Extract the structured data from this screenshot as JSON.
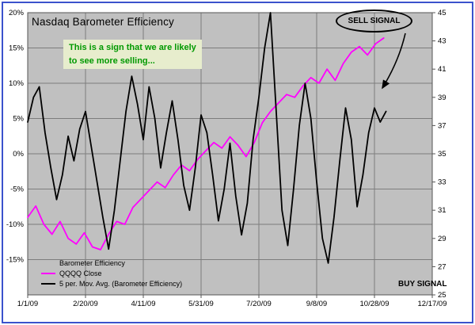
{
  "colors": {
    "frame_border": "#3b52cc",
    "plot_background": "#c0c0c0",
    "gridline": "#7d7d7d",
    "axis": "#555555"
  },
  "annotations": {
    "note_line1": "This is a sign that we are likely",
    "note_line2": "to see more selling...",
    "note_color": "#009900",
    "note_bg": "#e7edcd",
    "sell_signal": "SELL SIGNAL",
    "buy_signal": "BUY SIGNAL"
  },
  "chart_data": {
    "type": "line",
    "title": "Nasdaq Barometer Efficiency",
    "plot_bg": "#c0c0c0",
    "grid_color": "#7d7d7d",
    "x_axis": {
      "unit": "date",
      "range_days": [
        0,
        350
      ],
      "tick_days": [
        0,
        50,
        100,
        150,
        200,
        250,
        300,
        350
      ],
      "tick_labels": [
        "1/1/09",
        "2/20/09",
        "4/11/09",
        "5/31/09",
        "7/20/09",
        "9/8/09",
        "10/28/09",
        "12/17/09"
      ]
    },
    "y_left": {
      "range": [
        -20,
        20
      ],
      "tick_values": [
        20,
        15,
        10,
        5,
        0,
        -5,
        -10,
        -15,
        -20
      ],
      "tick_labels": [
        "20%",
        "15%",
        "10%",
        "5%",
        "0%",
        "-5%",
        "-10%",
        "-15%",
        ""
      ]
    },
    "y_right": {
      "range": [
        25,
        45
      ],
      "tick_values": [
        45,
        43,
        41,
        39,
        37,
        35,
        33,
        31,
        29,
        27,
        25
      ],
      "tick_labels": [
        "45",
        "43",
        "41",
        "39",
        "37",
        "35",
        "33",
        "31",
        "29",
        "27",
        "25"
      ]
    },
    "series": [
      {
        "name": "QQQQ Close",
        "axis": "right",
        "color": "#ff00ff",
        "width": 1.8,
        "x_days": [
          0,
          7,
          14,
          21,
          28,
          35,
          42,
          49,
          56,
          63,
          70,
          77,
          84,
          91,
          98,
          105,
          112,
          119,
          126,
          133,
          140,
          147,
          154,
          161,
          168,
          175,
          182,
          189,
          196,
          203,
          210,
          217,
          224,
          231,
          238,
          245,
          252,
          259,
          266,
          273,
          280,
          287,
          294,
          301,
          308
        ],
        "values": [
          30.5,
          31.3,
          30.0,
          29.3,
          30.2,
          29.0,
          28.6,
          29.4,
          28.4,
          28.2,
          29.3,
          30.2,
          30.0,
          31.2,
          31.8,
          32.4,
          33.0,
          32.6,
          33.5,
          34.2,
          33.8,
          34.6,
          35.2,
          35.8,
          35.4,
          36.2,
          35.6,
          34.8,
          35.8,
          37.2,
          38.0,
          38.6,
          39.2,
          39.0,
          39.8,
          40.4,
          40.0,
          41.0,
          40.2,
          41.4,
          42.2,
          42.6,
          42.0,
          42.8,
          43.2
        ]
      },
      {
        "name": "5 per. Mov. Avg. (Barometer Efficiency)",
        "axis": "left",
        "color": "#000000",
        "width": 1.8,
        "x_days": [
          0,
          5,
          10,
          15,
          20,
          25,
          30,
          35,
          40,
          45,
          50,
          55,
          60,
          65,
          70,
          75,
          80,
          85,
          90,
          95,
          100,
          105,
          110,
          115,
          120,
          125,
          130,
          135,
          140,
          145,
          150,
          155,
          160,
          165,
          170,
          175,
          180,
          185,
          190,
          195,
          200,
          205,
          210,
          215,
          220,
          225,
          230,
          235,
          240,
          245,
          250,
          255,
          260,
          265,
          270,
          275,
          280,
          285,
          290,
          295,
          300,
          305,
          310
        ],
        "values": [
          4.5,
          8.0,
          9.5,
          3.0,
          -2.0,
          -6.5,
          -3.0,
          2.5,
          -1.0,
          3.5,
          6.0,
          1.0,
          -4.0,
          -9.0,
          -13.5,
          -8.0,
          -1.0,
          6.0,
          11.0,
          7.0,
          2.0,
          9.5,
          5.0,
          -2.0,
          3.0,
          7.5,
          2.0,
          -4.5,
          -8.0,
          -2.0,
          5.5,
          3.0,
          -3.0,
          -9.5,
          -5.0,
          1.5,
          -6.0,
          -11.5,
          -7.0,
          2.0,
          8.0,
          15.0,
          20.0,
          6.0,
          -8.0,
          -13.0,
          -5.0,
          4.0,
          10.0,
          5.0,
          -4.0,
          -12.0,
          -15.5,
          -9.0,
          -1.0,
          6.5,
          2.0,
          -7.5,
          -3.0,
          3.0,
          6.5,
          4.5,
          6.0
        ]
      }
    ],
    "legend": {
      "position": "bottom-left-inside",
      "entries": [
        {
          "label": "Barometer Efficiency",
          "sample": "none"
        },
        {
          "label": "QQQQ Close",
          "sample": "#ff00ff"
        },
        {
          "label": "5 per. Mov. Avg. (Barometer Efficiency)",
          "sample": "#000000"
        }
      ]
    }
  }
}
